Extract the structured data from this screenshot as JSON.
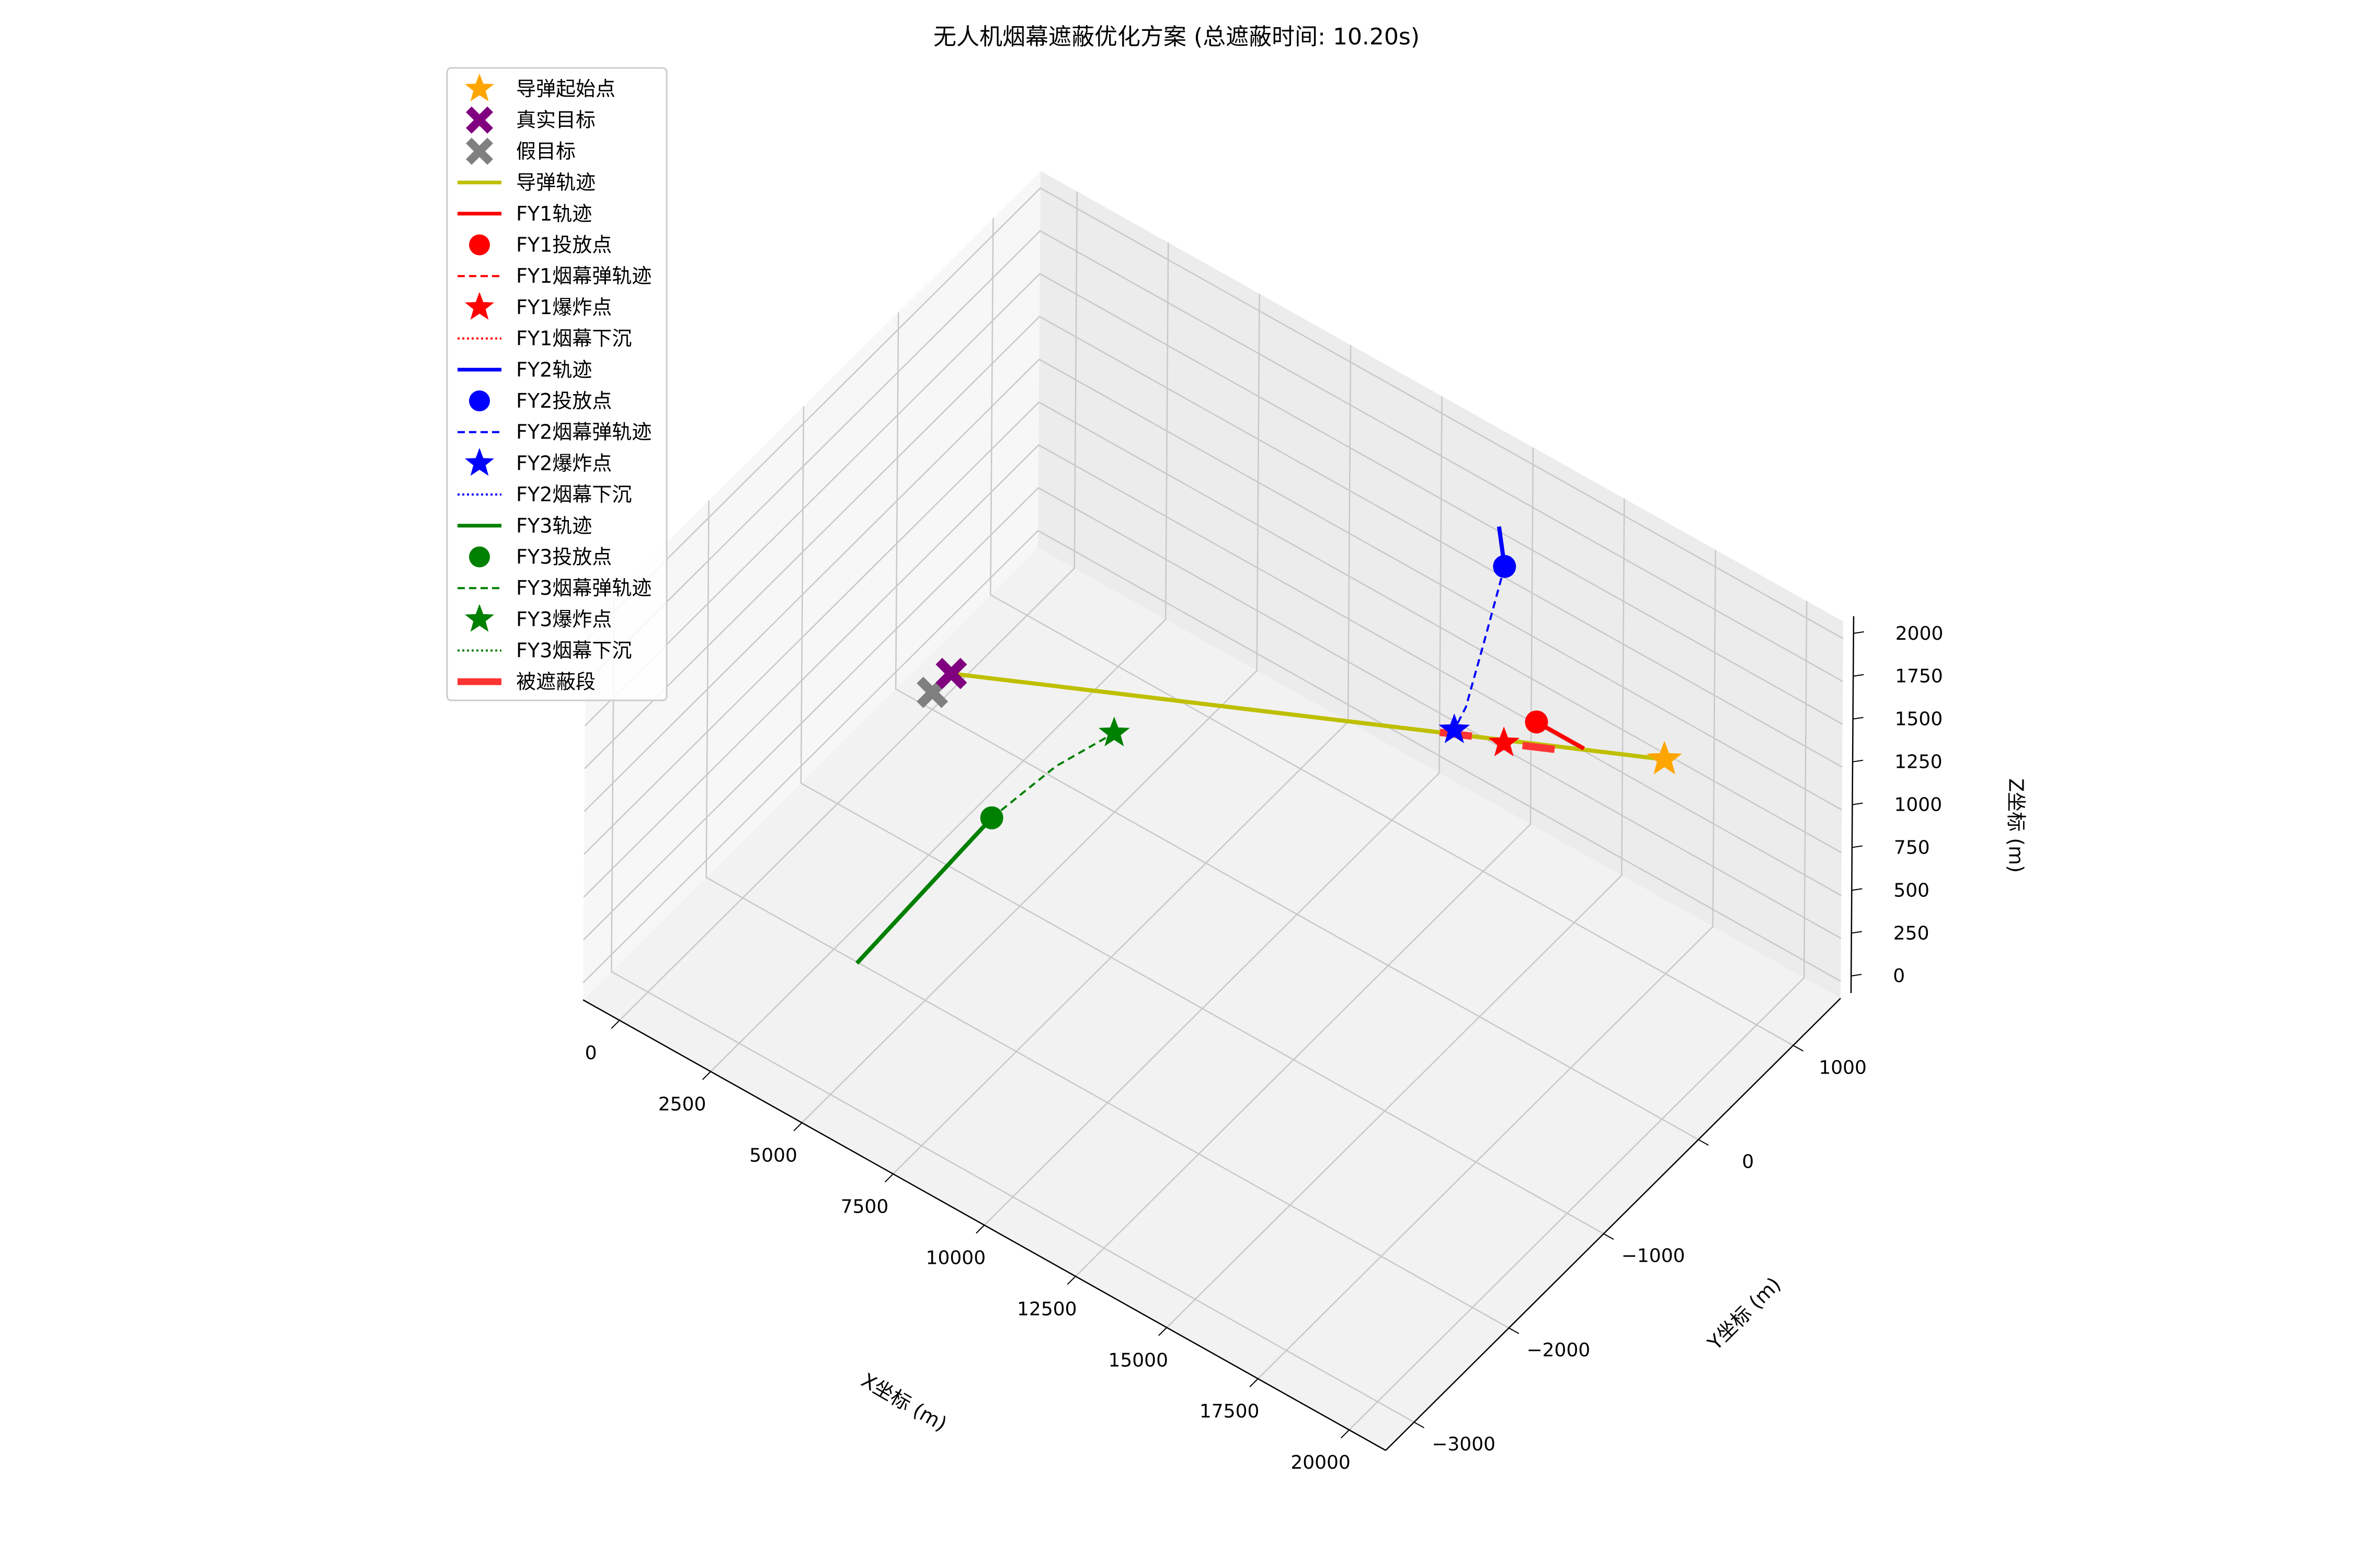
{
  "chart_data": {
    "type": "line3d",
    "title": "无人机烟幕遮蔽优化方案 (总遮蔽时间: 10.20s)",
    "xlabel": "X坐标 (m)",
    "ylabel": "Y坐标 (m)",
    "zlabel": "Z坐标 (m)",
    "xlim": [
      -1000,
      21000
    ],
    "ylim": [
      -3300,
      1500
    ],
    "zlim": [
      -100,
      2100
    ],
    "x_ticks": [
      0,
      2500,
      5000,
      7500,
      10000,
      12500,
      15000,
      17500,
      20000
    ],
    "y_ticks": [
      -3000,
      -2000,
      -1000,
      0,
      1000
    ],
    "z_ticks": [
      0,
      250,
      500,
      750,
      1000,
      1250,
      1500,
      1750,
      2000
    ],
    "x_tick_labels": [
      "0",
      "2500",
      "5000",
      "7500",
      "10000",
      "12500",
      "15000",
      "17500",
      "20000"
    ],
    "y_tick_labels": [
      "−3000",
      "−2000",
      "−1000",
      "0",
      "1000"
    ],
    "z_tick_labels": [
      "0",
      "250",
      "500",
      "750",
      "1000",
      "1250",
      "1500",
      "1750",
      "2000"
    ],
    "grid": true,
    "legend_position": "upper-left",
    "legend": [
      {
        "label": "导弹起始点",
        "marker": "star",
        "color": "#FFA500"
      },
      {
        "label": "真实目标",
        "marker": "x",
        "color": "#800080"
      },
      {
        "label": "假目标",
        "marker": "x",
        "color": "#808080"
      },
      {
        "label": "导弹轨迹",
        "marker": "line",
        "color": "#BFBF00"
      },
      {
        "label": "FY1轨迹",
        "marker": "line",
        "color": "#FF0000"
      },
      {
        "label": "FY1投放点",
        "marker": "circle",
        "color": "#FF0000"
      },
      {
        "label": "FY1烟幕弹轨迹",
        "marker": "dashed",
        "color": "#FF0000"
      },
      {
        "label": "FY1爆炸点",
        "marker": "star",
        "color": "#FF0000"
      },
      {
        "label": "FY1烟幕下沉",
        "marker": "dotted",
        "color": "#FF0000"
      },
      {
        "label": "FY2轨迹",
        "marker": "line",
        "color": "#0000FF"
      },
      {
        "label": "FY2投放点",
        "marker": "circle",
        "color": "#0000FF"
      },
      {
        "label": "FY2烟幕弹轨迹",
        "marker": "dashed",
        "color": "#0000FF"
      },
      {
        "label": "FY2爆炸点",
        "marker": "star",
        "color": "#0000FF"
      },
      {
        "label": "FY2烟幕下沉",
        "marker": "dotted",
        "color": "#0000FF"
      },
      {
        "label": "FY3轨迹",
        "marker": "line",
        "color": "#008000"
      },
      {
        "label": "FY3投放点",
        "marker": "circle",
        "color": "#008000"
      },
      {
        "label": "FY3烟幕弹轨迹",
        "marker": "dashed",
        "color": "#008000"
      },
      {
        "label": "FY3爆炸点",
        "marker": "star",
        "color": "#008000"
      },
      {
        "label": "FY3烟幕下沉",
        "marker": "dotted",
        "color": "#008000"
      },
      {
        "label": "被遮蔽段",
        "marker": "thick",
        "color": "#FF3333"
      }
    ],
    "points": {
      "missile_start": [
        20000,
        0,
        2000
      ],
      "real_target": [
        0,
        200,
        0
      ],
      "fake_target": [
        0,
        0,
        0
      ],
      "fy1_release": [
        16500,
        0,
        1800
      ],
      "fy1_explode": [
        16000,
        -150,
        1700
      ],
      "fy2_release": [
        12000,
        1400,
        1400
      ],
      "fy2_explode": [
        14000,
        100,
        1400
      ],
      "fy3_release": [
        5500,
        -1500,
        750
      ],
      "fy3_explode": [
        6000,
        -400,
        700
      ]
    },
    "series": {
      "missile_path": [
        [
          20000,
          0,
          2000
        ],
        [
          0,
          200,
          0
        ]
      ],
      "fy1_path": [
        [
          17800,
          0,
          1800
        ],
        [
          16500,
          0,
          1800
        ]
      ],
      "fy2_path": [
        [
          12000,
          1400,
          1400
        ],
        [
          11200,
          1650,
          1400
        ]
      ],
      "fy3_path": [
        [
          5500,
          -1500,
          750
        ],
        [
          5700,
          -3000,
          750
        ]
      ],
      "fy2_smoke_path": [
        [
          12000,
          1400,
          1400
        ],
        [
          13000,
          800,
          1410
        ],
        [
          13800,
          300,
          1400
        ],
        [
          14000,
          100,
          1400
        ]
      ],
      "fy3_smoke_path": [
        [
          5500,
          -1500,
          750
        ],
        [
          5700,
          -900,
          745
        ],
        [
          6000,
          -400,
          700
        ]
      ],
      "covered_segments": [
        [
          [
            17000,
            0,
            1700
          ],
          [
            16100,
            9,
            1610
          ]
        ],
        [
          [
            14600,
            54,
            1460
          ],
          [
            13700,
            63,
            1370
          ]
        ]
      ]
    }
  }
}
